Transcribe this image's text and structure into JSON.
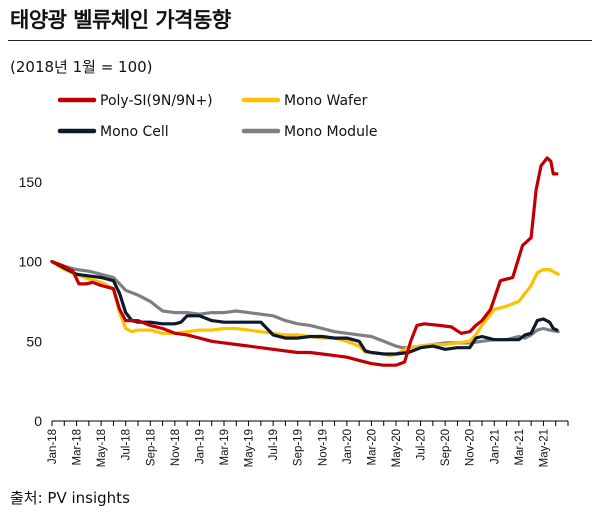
{
  "header": {
    "title": "태양광 벨류체인 가격동향"
  },
  "subtitle": "(2018년 1월 = 100)",
  "source": "출처: PV insights",
  "chart_data": {
    "type": "line",
    "yticks": [
      0,
      50,
      100,
      150
    ],
    "ylim": [
      0,
      170
    ],
    "xlim": [
      0,
      42
    ],
    "grid": false,
    "legend_position": "top-left",
    "xtick_labels": [
      "Jan-18",
      "Mar-18",
      "May-18",
      "Jul-18",
      "Sep-18",
      "Nov-18",
      "Jan-19",
      "Mar-19",
      "May-19",
      "Jul-19",
      "Sep-19",
      "Nov-19",
      "Jan-20",
      "Mar-20",
      "May-20",
      "Jul-20",
      "Sep-20",
      "Nov-20",
      "Jan-21",
      "Mar-21",
      "May-21"
    ],
    "series": [
      {
        "name": "Poly-SI(9N/9N+)",
        "color": "#c00000",
        "points": [
          [
            0,
            100
          ],
          [
            1,
            97
          ],
          [
            1.7,
            94
          ],
          [
            2.2,
            86
          ],
          [
            2.8,
            86
          ],
          [
            3.3,
            87
          ],
          [
            4,
            85
          ],
          [
            5,
            83
          ],
          [
            5.5,
            70
          ],
          [
            6,
            63
          ],
          [
            7,
            63
          ],
          [
            8,
            60
          ],
          [
            9,
            58
          ],
          [
            10,
            55
          ],
          [
            11,
            54
          ],
          [
            12,
            52
          ],
          [
            13,
            50
          ],
          [
            14,
            49
          ],
          [
            15,
            48
          ],
          [
            16,
            47
          ],
          [
            17,
            46
          ],
          [
            18,
            45
          ],
          [
            19,
            44
          ],
          [
            20,
            43
          ],
          [
            21,
            43
          ],
          [
            22,
            42
          ],
          [
            23,
            41
          ],
          [
            24,
            40
          ],
          [
            25,
            38
          ],
          [
            26,
            36
          ],
          [
            27,
            35
          ],
          [
            28,
            35
          ],
          [
            28.7,
            37
          ],
          [
            29.2,
            50
          ],
          [
            29.7,
            60
          ],
          [
            30.3,
            61
          ],
          [
            31.5,
            60
          ],
          [
            32.5,
            59
          ],
          [
            33.3,
            55
          ],
          [
            34,
            56
          ],
          [
            34.5,
            60
          ],
          [
            35,
            63
          ],
          [
            35.7,
            70
          ],
          [
            36.5,
            88
          ],
          [
            37.5,
            90
          ],
          [
            38.3,
            110
          ],
          [
            39,
            115
          ],
          [
            39.4,
            145
          ],
          [
            39.8,
            160
          ],
          [
            40.3,
            165
          ],
          [
            40.6,
            163
          ],
          [
            40.8,
            155
          ],
          [
            41.1,
            155
          ]
        ]
      },
      {
        "name": "Mono Wafer",
        "color": "#ffc000",
        "points": [
          [
            0,
            100
          ],
          [
            1,
            95
          ],
          [
            2,
            92
          ],
          [
            3,
            89
          ],
          [
            4,
            87
          ],
          [
            5,
            83
          ],
          [
            5.5,
            68
          ],
          [
            6,
            58
          ],
          [
            6.5,
            56
          ],
          [
            7,
            57
          ],
          [
            8,
            57
          ],
          [
            9,
            55
          ],
          [
            10,
            55
          ],
          [
            11,
            56
          ],
          [
            12,
            57
          ],
          [
            13,
            57
          ],
          [
            14,
            58
          ],
          [
            15,
            58
          ],
          [
            16,
            57
          ],
          [
            17,
            56
          ],
          [
            18,
            55
          ],
          [
            19,
            54
          ],
          [
            20,
            54
          ],
          [
            21,
            53
          ],
          [
            22,
            52
          ],
          [
            23,
            52
          ],
          [
            24,
            50
          ],
          [
            25,
            47
          ],
          [
            25.5,
            43
          ],
          [
            26,
            43
          ],
          [
            27,
            42
          ],
          [
            27.5,
            41
          ],
          [
            28,
            42
          ],
          [
            28.5,
            44
          ],
          [
            29,
            46
          ],
          [
            30,
            47
          ],
          [
            31,
            48
          ],
          [
            32,
            48
          ],
          [
            33,
            49
          ],
          [
            34,
            50
          ],
          [
            34.5,
            54
          ],
          [
            35,
            60
          ],
          [
            36,
            70
          ],
          [
            37,
            72
          ],
          [
            38,
            75
          ],
          [
            38.5,
            80
          ],
          [
            39,
            85
          ],
          [
            39.5,
            93
          ],
          [
            40,
            95
          ],
          [
            40.5,
            95
          ],
          [
            41.2,
            92
          ]
        ]
      },
      {
        "name": "Mono Cell",
        "color": "#0d1a2e",
        "points": [
          [
            0,
            100
          ],
          [
            1,
            96
          ],
          [
            2,
            92
          ],
          [
            3,
            91
          ],
          [
            4,
            90
          ],
          [
            5,
            88
          ],
          [
            5.5,
            80
          ],
          [
            6,
            68
          ],
          [
            6.5,
            63
          ],
          [
            7,
            62
          ],
          [
            8,
            62
          ],
          [
            9,
            61
          ],
          [
            10,
            61
          ],
          [
            10.5,
            62
          ],
          [
            11,
            66
          ],
          [
            12,
            66
          ],
          [
            13,
            63
          ],
          [
            14,
            62
          ],
          [
            15,
            62
          ],
          [
            16,
            62
          ],
          [
            17,
            62
          ],
          [
            17.5,
            58
          ],
          [
            18,
            54
          ],
          [
            19,
            52
          ],
          [
            20,
            52
          ],
          [
            21,
            53
          ],
          [
            22,
            53
          ],
          [
            23,
            52
          ],
          [
            24,
            52
          ],
          [
            25,
            50
          ],
          [
            25.5,
            44
          ],
          [
            26,
            43
          ],
          [
            27,
            42
          ],
          [
            28,
            42
          ],
          [
            29,
            43
          ],
          [
            30,
            46
          ],
          [
            31,
            47
          ],
          [
            32,
            45
          ],
          [
            33,
            46
          ],
          [
            34,
            46
          ],
          [
            34.5,
            52
          ],
          [
            35,
            53
          ],
          [
            36,
            51
          ],
          [
            37,
            51
          ],
          [
            38,
            51
          ],
          [
            38.5,
            54
          ],
          [
            39,
            55
          ],
          [
            39.5,
            63
          ],
          [
            40,
            64
          ],
          [
            40.5,
            62
          ],
          [
            40.8,
            58
          ],
          [
            41.1,
            57
          ]
        ]
      },
      {
        "name": "Mono Module",
        "color": "#7f7f7f",
        "points": [
          [
            0,
            100
          ],
          [
            1,
            97
          ],
          [
            2,
            95
          ],
          [
            3,
            94
          ],
          [
            4,
            92
          ],
          [
            5,
            90
          ],
          [
            5.5,
            86
          ],
          [
            6,
            82
          ],
          [
            7,
            79
          ],
          [
            8,
            75
          ],
          [
            8.5,
            72
          ],
          [
            9,
            69
          ],
          [
            10,
            68
          ],
          [
            11,
            68
          ],
          [
            12,
            67
          ],
          [
            13,
            68
          ],
          [
            14,
            68
          ],
          [
            15,
            69
          ],
          [
            16,
            68
          ],
          [
            17,
            67
          ],
          [
            18,
            66
          ],
          [
            19,
            63
          ],
          [
            20,
            61
          ],
          [
            21,
            60
          ],
          [
            22,
            58
          ],
          [
            23,
            56
          ],
          [
            24,
            55
          ],
          [
            25,
            54
          ],
          [
            26,
            53
          ],
          [
            27,
            50
          ],
          [
            28,
            47
          ],
          [
            28.5,
            46
          ],
          [
            29,
            46
          ],
          [
            30,
            47
          ],
          [
            31,
            48
          ],
          [
            32,
            49
          ],
          [
            33,
            49
          ],
          [
            34,
            49
          ],
          [
            35,
            50
          ],
          [
            36,
            51
          ],
          [
            37,
            51
          ],
          [
            37.5,
            52
          ],
          [
            38,
            53
          ],
          [
            38.5,
            52
          ],
          [
            39,
            54
          ],
          [
            39.5,
            57
          ],
          [
            40,
            58
          ],
          [
            40.5,
            57
          ],
          [
            41.2,
            56
          ]
        ]
      }
    ]
  }
}
